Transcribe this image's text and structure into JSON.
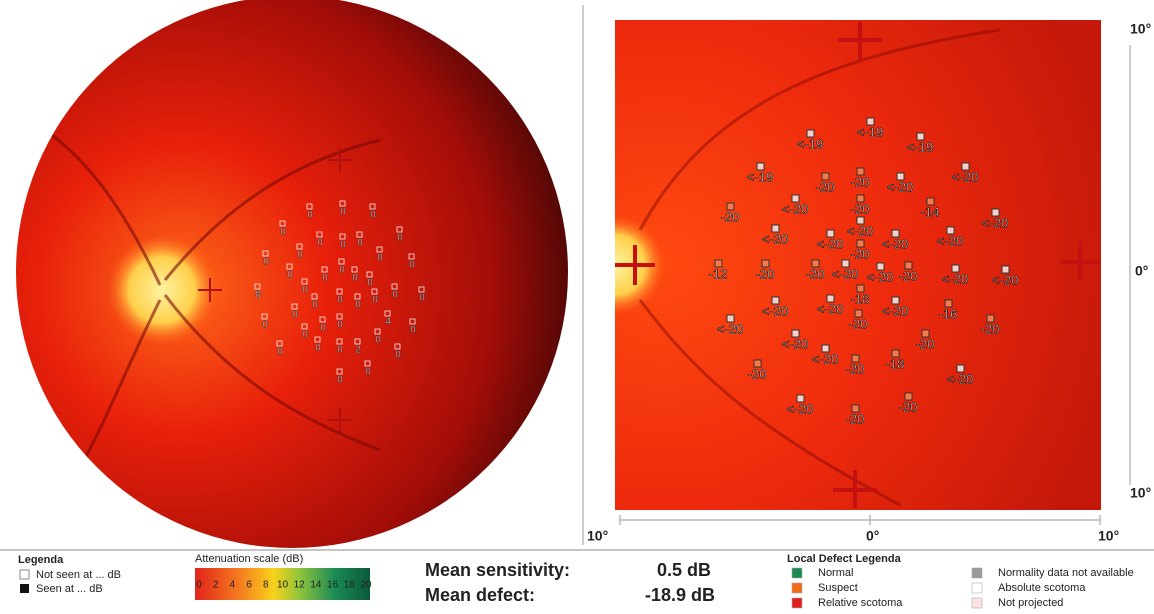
{
  "left_panel": {
    "points": [
      "0",
      "0",
      "0",
      "0",
      "0",
      "0",
      "0",
      "0",
      "0",
      "0",
      "0",
      "0",
      "8",
      "0",
      "0",
      "0",
      "0",
      "0",
      "0",
      "0",
      "0",
      "0",
      "0",
      "0",
      "0",
      "0",
      "0",
      "0",
      "0",
      "0",
      "4",
      "0",
      "0",
      "0",
      "0",
      "2",
      "0",
      "0",
      "0",
      "0"
    ]
  },
  "right_panel": {
    "points": [
      "<-19",
      "<-19",
      "<-19",
      "<-19",
      "-20",
      "-20",
      "<-20",
      "<-20",
      "<-20",
      "-20",
      "-14",
      "<-20",
      "-20",
      "<-20",
      "<-20",
      "<-20",
      "<-20",
      "<-20",
      "-20",
      "-12",
      "-20",
      "-20",
      "<-20",
      "<-20",
      "-20",
      "<-20",
      "<-20",
      "<-20",
      "<-20",
      "-18",
      "-20",
      "<-20",
      "-16",
      "-20",
      "<-20",
      "<-20",
      "<-20",
      "-20",
      "-18",
      "-20",
      "<-20",
      "-20",
      "<-20",
      "-20",
      "-20"
    ],
    "y_axis_labels": [
      "10°",
      "0°",
      "10°"
    ],
    "x_axis_labels": [
      "10°",
      "0°",
      "10°"
    ]
  },
  "legend": {
    "title": "Legenda",
    "items": [
      "Not seen at ... dB",
      "Seen at ... dB"
    ]
  },
  "attenuation_scale": {
    "title": "Attenuation scale (dB)",
    "ticks": [
      "0",
      "2",
      "4",
      "6",
      "8",
      "10",
      "12",
      "14",
      "16",
      "18",
      "20"
    ]
  },
  "summary": {
    "mean_sensitivity_label": "Mean sensitivity:",
    "mean_sensitivity_value": "0.5 dB",
    "mean_defect_label": "Mean defect:",
    "mean_defect_value": "-18.9 dB"
  },
  "local_defect_legend": {
    "title": "Local Defect Legenda",
    "items": [
      "Normal",
      "Suspect",
      "Relative scotoma",
      "Normality data not available",
      "Absolute scotoma",
      "Not projected"
    ]
  }
}
